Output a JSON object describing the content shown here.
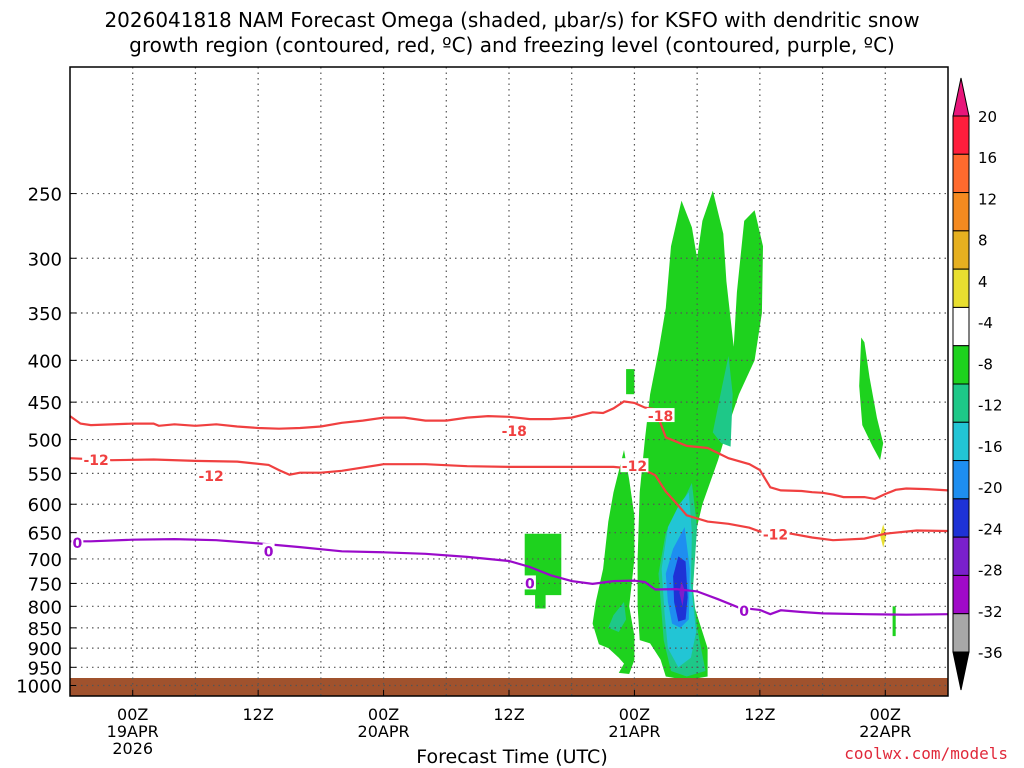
{
  "chart_data": {
    "type": "heatmap",
    "title_line1": "2026041818 NAM Forecast Omega (shaded, μbar/s) for KSFO with dendritic snow",
    "title_line2": "growth region (contoured, red, ºC) and freezing level (contoured, purple, ºC)",
    "xlabel": "Forecast Time (UTC)",
    "credit": "coolwx.com/models",
    "x_range_hours": [
      -6,
      78
    ],
    "x_ticks": [
      {
        "hour": 0,
        "label": "00Z",
        "sub1": "19APR",
        "sub2": "2026"
      },
      {
        "hour": 12,
        "label": "12Z",
        "sub1": "",
        "sub2": ""
      },
      {
        "hour": 24,
        "label": "00Z",
        "sub1": "20APR",
        "sub2": ""
      },
      {
        "hour": 36,
        "label": "12Z",
        "sub1": "",
        "sub2": ""
      },
      {
        "hour": 48,
        "label": "00Z",
        "sub1": "21APR",
        "sub2": ""
      },
      {
        "hour": 60,
        "label": "12Z",
        "sub1": "",
        "sub2": ""
      },
      {
        "hour": 72,
        "label": "00Z",
        "sub1": "22APR",
        "sub2": ""
      }
    ],
    "y_axis": "pressure (hPa), log scale, reversed",
    "y_range": [
      175,
      1030
    ],
    "y_ticks": [
      250,
      300,
      350,
      400,
      450,
      500,
      550,
      600,
      650,
      700,
      750,
      800,
      850,
      900,
      950,
      1000
    ],
    "grid": true,
    "colorbar": {
      "levels": [
        20,
        16,
        12,
        8,
        4,
        -4,
        -8,
        -12,
        -16,
        -20,
        -24,
        -28,
        -32,
        -36
      ],
      "colors": [
        "#ff1e3c",
        "#ff6a2e",
        "#f48a20",
        "#e6b020",
        "#e8df30",
        "#ffffff",
        "#1ed21e",
        "#1ec888",
        "#22c5d5",
        "#1e8ef0",
        "#1e32d6",
        "#7a20cc",
        "#a00ac8",
        "#a8a8a8",
        "#000000"
      ],
      "top_triangle_color": "#e8167a",
      "bottom_triangle_color": "#000000"
    },
    "shaded_regions": [
      {
        "level": -4,
        "color": "#1ed21e",
        "points": [
          [
            37.5,
            652
          ],
          [
            41,
            652
          ],
          [
            41,
            775
          ],
          [
            39.5,
            775
          ],
          [
            39.5,
            805
          ],
          [
            38.5,
            805
          ],
          [
            38.5,
            775
          ],
          [
            37.5,
            775
          ]
        ]
      },
      {
        "level": -4,
        "color": "#1ed21e",
        "points": [
          [
            45.5,
            900
          ],
          [
            46.5,
            925
          ],
          [
            47,
            940
          ],
          [
            46.5,
            965
          ],
          [
            47.5,
            968
          ],
          [
            48,
            930
          ],
          [
            48,
            870
          ],
          [
            47.5,
            800
          ],
          [
            48,
            700
          ],
          [
            48,
            620
          ],
          [
            47.5,
            560
          ],
          [
            47,
            515
          ],
          [
            46,
            580
          ],
          [
            45.5,
            630
          ],
          [
            45,
            720
          ],
          [
            44.3,
            790
          ],
          [
            44,
            840
          ],
          [
            44.6,
            890
          ]
        ]
      },
      {
        "level": -4,
        "color": "#1ed21e",
        "points": [
          [
            48.5,
            880
          ],
          [
            49.5,
            888
          ],
          [
            50.5,
            930
          ],
          [
            51,
            975
          ],
          [
            53,
            985
          ],
          [
            55,
            975
          ],
          [
            55,
            900
          ],
          [
            54,
            820
          ],
          [
            53.2,
            760
          ],
          [
            53.5,
            680
          ],
          [
            54.5,
            600
          ],
          [
            56,
            530
          ],
          [
            57,
            480
          ],
          [
            58,
            440
          ],
          [
            59.5,
            400
          ],
          [
            60.2,
            350
          ],
          [
            60.3,
            290
          ],
          [
            59.5,
            262
          ],
          [
            58.5,
            270
          ],
          [
            57.8,
            330
          ],
          [
            57.5,
            385
          ],
          [
            56.8,
            320
          ],
          [
            56.5,
            280
          ],
          [
            55.5,
            248
          ],
          [
            54.5,
            270
          ],
          [
            54,
            300
          ],
          [
            53.5,
            275
          ],
          [
            52.5,
            255
          ],
          [
            51.5,
            290
          ],
          [
            51,
            345
          ],
          [
            50.3,
            390
          ],
          [
            49.5,
            440
          ],
          [
            49,
            500
          ],
          [
            48.5,
            580
          ],
          [
            48.3,
            700
          ],
          [
            48.3,
            800
          ]
        ]
      },
      {
        "level": -4,
        "color": "#1ed21e",
        "points": [
          [
            47.2,
            410
          ],
          [
            48,
            410
          ],
          [
            48,
            440
          ],
          [
            47.2,
            440
          ]
        ]
      },
      {
        "level": -4,
        "color": "#1ed21e",
        "points": [
          [
            69.7,
            375
          ],
          [
            70,
            380
          ],
          [
            70.5,
            420
          ],
          [
            71.2,
            470
          ],
          [
            71.8,
            505
          ],
          [
            71.5,
            530
          ],
          [
            70.8,
            510
          ],
          [
            69.8,
            480
          ],
          [
            69.5,
            430
          ]
        ]
      },
      {
        "level": -4,
        "color": "#1ed21e",
        "points": [
          [
            72.7,
            800
          ],
          [
            73,
            800
          ],
          [
            73,
            870
          ],
          [
            72.7,
            870
          ]
        ]
      },
      {
        "level": -8,
        "color": "#1ec888",
        "points": [
          [
            45.5,
            850
          ],
          [
            46,
            820
          ],
          [
            47,
            790
          ],
          [
            47.2,
            830
          ],
          [
            46.5,
            860
          ]
        ]
      },
      {
        "level": -8,
        "color": "#1ec888",
        "points": [
          [
            50.3,
            730
          ],
          [
            51,
            650
          ],
          [
            52.5,
            600
          ],
          [
            53.5,
            565
          ],
          [
            54,
            640
          ],
          [
            53.6,
            760
          ],
          [
            54,
            850
          ],
          [
            54.8,
            960
          ],
          [
            53,
            975
          ],
          [
            51.5,
            960
          ],
          [
            50.8,
            880
          ]
        ]
      },
      {
        "level": -8,
        "color": "#1ec888",
        "points": [
          [
            55.5,
            490
          ],
          [
            56.4,
            430
          ],
          [
            57,
            395
          ],
          [
            57.4,
            440
          ],
          [
            57.2,
            510
          ],
          [
            56.3,
            505
          ]
        ]
      },
      {
        "level": -12,
        "color": "#22c5d5",
        "points": [
          [
            50.6,
            720
          ],
          [
            51.2,
            640
          ],
          [
            52.3,
            600
          ],
          [
            53.2,
            580
          ],
          [
            53.5,
            650
          ],
          [
            53.4,
            750
          ],
          [
            53.9,
            860
          ],
          [
            53.4,
            925
          ],
          [
            52.2,
            950
          ],
          [
            51.2,
            900
          ],
          [
            50.9,
            820
          ]
        ]
      },
      {
        "level": -16,
        "color": "#1e8ef0",
        "points": [
          [
            51,
            730
          ],
          [
            51.7,
            680
          ],
          [
            52.8,
            640
          ],
          [
            53.3,
            720
          ],
          [
            53.2,
            830
          ],
          [
            52.4,
            850
          ],
          [
            51.6,
            840
          ],
          [
            51.2,
            790
          ]
        ]
      },
      {
        "level": -20,
        "color": "#1e32d6",
        "points": [
          [
            51.7,
            735
          ],
          [
            52.2,
            695
          ],
          [
            52.9,
            705
          ],
          [
            53.1,
            780
          ],
          [
            52.9,
            830
          ],
          [
            52.2,
            835
          ],
          [
            51.8,
            790
          ]
        ]
      },
      {
        "level": -24,
        "color": "#7a20cc",
        "points": [
          [
            52.3,
            770
          ],
          [
            52.5,
            745
          ],
          [
            52.8,
            765
          ],
          [
            52.6,
            800
          ]
        ]
      },
      {
        "level": 4,
        "color": "#e8df30",
        "points": [
          [
            71.5,
            655
          ],
          [
            71.8,
            635
          ],
          [
            72.1,
            655
          ],
          [
            71.8,
            678
          ]
        ]
      }
    ],
    "contours": [
      {
        "name": "-18",
        "color": "#f04040",
        "label": "-18",
        "label_points": [
          [
            36.5,
            488
          ],
          [
            50.5,
            468
          ]
        ],
        "points": [
          [
            -6,
            468
          ],
          [
            -5,
            478
          ],
          [
            -4,
            480
          ],
          [
            0,
            478
          ],
          [
            2,
            478
          ],
          [
            2.5,
            481
          ],
          [
            4,
            479
          ],
          [
            6,
            481
          ],
          [
            8,
            479
          ],
          [
            10,
            482
          ],
          [
            12,
            484
          ],
          [
            14,
            485
          ],
          [
            16,
            484
          ],
          [
            18,
            482
          ],
          [
            20,
            477
          ],
          [
            22,
            474
          ],
          [
            24,
            470
          ],
          [
            26,
            470
          ],
          [
            28,
            474
          ],
          [
            30,
            474
          ],
          [
            32,
            470
          ],
          [
            34,
            468
          ],
          [
            36,
            469
          ],
          [
            38,
            472
          ],
          [
            40,
            472
          ],
          [
            42,
            470
          ],
          [
            44,
            463
          ],
          [
            45,
            464
          ],
          [
            46,
            458
          ],
          [
            47,
            449
          ],
          [
            48,
            451
          ],
          [
            49,
            457
          ],
          [
            50,
            459
          ],
          [
            51,
            497
          ],
          [
            53,
            509
          ],
          [
            55,
            512
          ],
          [
            57,
            527
          ],
          [
            59,
            536
          ],
          [
            60,
            545
          ],
          [
            61,
            572
          ],
          [
            62,
            577
          ],
          [
            64,
            578
          ],
          [
            65,
            580
          ],
          [
            66,
            581
          ],
          [
            67,
            584
          ],
          [
            68,
            588
          ],
          [
            70,
            588
          ],
          [
            71,
            591
          ],
          [
            72,
            583
          ],
          [
            73,
            576
          ],
          [
            74,
            574
          ],
          [
            76,
            575
          ],
          [
            78,
            577
          ]
        ]
      },
      {
        "name": "-12",
        "color": "#f04040",
        "label": "-12",
        "label_points": [
          [
            -3.5,
            530
          ],
          [
            7.5,
            554
          ],
          [
            48,
            539
          ],
          [
            61.5,
            653
          ]
        ],
        "points": [
          [
            -6,
            527
          ],
          [
            -2,
            530
          ],
          [
            2,
            529
          ],
          [
            6,
            531
          ],
          [
            10,
            532
          ],
          [
            13,
            537
          ],
          [
            14,
            545
          ],
          [
            15,
            552
          ],
          [
            16,
            549
          ],
          [
            18,
            549
          ],
          [
            20,
            546
          ],
          [
            24,
            536
          ],
          [
            28,
            536
          ],
          [
            32,
            539
          ],
          [
            36,
            540
          ],
          [
            42,
            540
          ],
          [
            46,
            540
          ],
          [
            48,
            543
          ],
          [
            49,
            545
          ],
          [
            50,
            553
          ],
          [
            51,
            579
          ],
          [
            52,
            598
          ],
          [
            53,
            619
          ],
          [
            55,
            630
          ],
          [
            57,
            634
          ],
          [
            59,
            641
          ],
          [
            60,
            648
          ],
          [
            63,
            652
          ],
          [
            65,
            659
          ],
          [
            67,
            664
          ],
          [
            70,
            661
          ],
          [
            72,
            652
          ],
          [
            75,
            646
          ],
          [
            78,
            647
          ]
        ]
      },
      {
        "name": "0",
        "color": "#9a0aca",
        "label": "0",
        "label_points": [
          [
            -5.3,
            669
          ],
          [
            13,
            685
          ],
          [
            38,
            750
          ],
          [
            58.5,
            811
          ]
        ],
        "points": [
          [
            -6,
            666
          ],
          [
            -4,
            666
          ],
          [
            0,
            663
          ],
          [
            4,
            662
          ],
          [
            8,
            664
          ],
          [
            12,
            670
          ],
          [
            16,
            677
          ],
          [
            20,
            685
          ],
          [
            24,
            687
          ],
          [
            28,
            690
          ],
          [
            32,
            696
          ],
          [
            36,
            704
          ],
          [
            38,
            716
          ],
          [
            40,
            733
          ],
          [
            42,
            745
          ],
          [
            44,
            751
          ],
          [
            46,
            745
          ],
          [
            48,
            744
          ],
          [
            49,
            747
          ],
          [
            50,
            763
          ],
          [
            52,
            762
          ],
          [
            54,
            767
          ],
          [
            56,
            784
          ],
          [
            58,
            803
          ],
          [
            60,
            808
          ],
          [
            61,
            818
          ],
          [
            62,
            809
          ],
          [
            64,
            813
          ],
          [
            66,
            816
          ],
          [
            70,
            818
          ],
          [
            74,
            819
          ],
          [
            78,
            818
          ]
        ]
      }
    ]
  }
}
